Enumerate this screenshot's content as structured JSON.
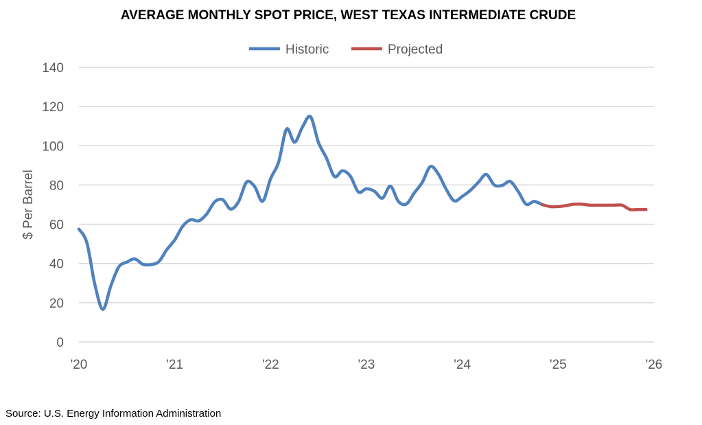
{
  "chart_data": {
    "type": "line",
    "title": "AVERAGE MONTHLY SPOT PRICE, WEST TEXAS INTERMEDIATE CRUDE",
    "xlabel": "",
    "ylabel": "$ Per Barrel",
    "ylim": [
      0,
      140
    ],
    "yticks": [
      "0",
      "20",
      "40",
      "60",
      "80",
      "100",
      "120",
      "140"
    ],
    "xticks": [
      "'20",
      "'21",
      "'22",
      "'23",
      "'24",
      "'25",
      "'26"
    ],
    "grid": true,
    "legend": "top-center",
    "x_start": "2020-01",
    "x_unit": "month",
    "series": [
      {
        "name": "Historic",
        "color": "#4F81BD",
        "start_month_index": 0,
        "values": [
          57.5,
          50.5,
          29.2,
          16.6,
          28.6,
          38.3,
          40.7,
          42.3,
          39.6,
          39.4,
          40.9,
          47.0,
          52.0,
          59.0,
          62.3,
          61.7,
          65.2,
          71.4,
          72.5,
          67.7,
          71.6,
          81.5,
          79.2,
          71.7,
          83.2,
          91.6,
          108.5,
          101.8,
          109.6,
          114.8,
          101.6,
          93.7,
          84.3,
          87.3,
          84.4,
          76.4,
          78.1,
          76.8,
          73.3,
          79.4,
          71.6,
          70.3,
          76.0,
          81.4,
          89.4,
          85.6,
          77.7,
          71.9,
          74.2,
          77.2,
          81.3,
          85.4,
          80.0,
          79.8,
          81.8,
          76.7,
          70.2,
          71.6,
          70.0
        ]
      },
      {
        "name": "Projected",
        "color": "#C0504D",
        "start_month_index": 58,
        "values": [
          70.0,
          69.0,
          69.0,
          69.5,
          70.2,
          70.2,
          69.7,
          69.7,
          69.7,
          69.7,
          69.7,
          67.5,
          67.5,
          67.5
        ]
      }
    ]
  },
  "source": "Source: U.S. Energy Information Administration"
}
